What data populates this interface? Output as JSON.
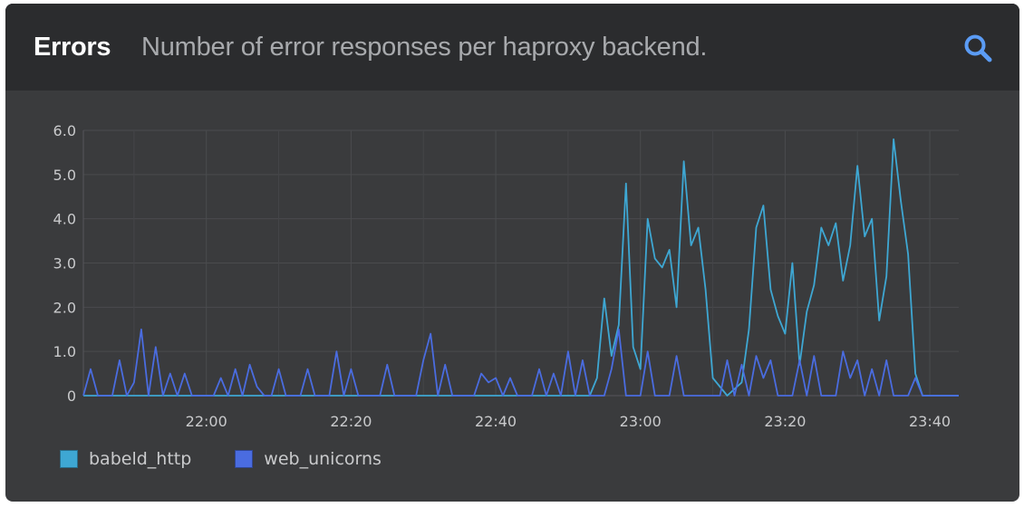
{
  "panel": {
    "title": "Errors",
    "subtitle": "Number of error responses per haproxy backend.",
    "search_icon": "search-icon"
  },
  "colors": {
    "babeld_http": "#3ea7d3",
    "web_unicorns": "#4a6ce0",
    "search": "#5b9cf5"
  },
  "chart_data": {
    "type": "line",
    "x_unit": "time (HH:MM)",
    "xlim": [
      "21:43",
      "23:44"
    ],
    "x_ticks": [
      "22:00",
      "22:20",
      "22:40",
      "23:00",
      "23:20",
      "23:40"
    ],
    "ylim": [
      0,
      6
    ],
    "y_ticks": [
      "0",
      "1.0",
      "2.0",
      "3.0",
      "4.0",
      "5.0",
      "6.0"
    ],
    "grid": true,
    "legend_position": "bottom-left",
    "series": [
      {
        "name": "babeld_http",
        "color": "#3ea7d3",
        "points": [
          [
            "21:43",
            0
          ],
          [
            "22:53",
            0
          ],
          [
            "22:54",
            0.4
          ],
          [
            "22:55",
            2.2
          ],
          [
            "22:56",
            0.9
          ],
          [
            "22:57",
            1.6
          ],
          [
            "22:58",
            4.8
          ],
          [
            "22:59",
            1.1
          ],
          [
            "23:00",
            0.6
          ],
          [
            "23:01",
            4.0
          ],
          [
            "23:02",
            3.1
          ],
          [
            "23:03",
            2.9
          ],
          [
            "23:04",
            3.3
          ],
          [
            "23:05",
            2.0
          ],
          [
            "23:06",
            5.3
          ],
          [
            "23:07",
            3.4
          ],
          [
            "23:08",
            3.8
          ],
          [
            "23:09",
            2.4
          ],
          [
            "23:10",
            0.4
          ],
          [
            "23:12",
            0
          ],
          [
            "23:14",
            0.3
          ],
          [
            "23:15",
            1.5
          ],
          [
            "23:16",
            3.8
          ],
          [
            "23:17",
            4.3
          ],
          [
            "23:18",
            2.4
          ],
          [
            "23:19",
            1.8
          ],
          [
            "23:20",
            1.4
          ],
          [
            "23:21",
            3.0
          ],
          [
            "23:22",
            0.7
          ],
          [
            "23:23",
            1.9
          ],
          [
            "23:24",
            2.5
          ],
          [
            "23:25",
            3.8
          ],
          [
            "23:26",
            3.4
          ],
          [
            "23:27",
            3.9
          ],
          [
            "23:28",
            2.6
          ],
          [
            "23:29",
            3.4
          ],
          [
            "23:30",
            5.2
          ],
          [
            "23:31",
            3.6
          ],
          [
            "23:32",
            4.0
          ],
          [
            "23:33",
            1.7
          ],
          [
            "23:34",
            2.7
          ],
          [
            "23:35",
            5.8
          ],
          [
            "23:36",
            4.4
          ],
          [
            "23:37",
            3.2
          ],
          [
            "23:38",
            0.5
          ],
          [
            "23:39",
            0
          ],
          [
            "23:44",
            0
          ]
        ]
      },
      {
        "name": "web_unicorns",
        "color": "#4a6ce0",
        "points": [
          [
            "21:43",
            0
          ],
          [
            "21:44",
            0.6
          ],
          [
            "21:45",
            0
          ],
          [
            "21:47",
            0
          ],
          [
            "21:48",
            0.8
          ],
          [
            "21:49",
            0
          ],
          [
            "21:50",
            0.3
          ],
          [
            "21:51",
            1.5
          ],
          [
            "21:52",
            0
          ],
          [
            "21:53",
            1.1
          ],
          [
            "21:54",
            0
          ],
          [
            "21:55",
            0.5
          ],
          [
            "21:56",
            0
          ],
          [
            "21:57",
            0.5
          ],
          [
            "21:58",
            0
          ],
          [
            "22:01",
            0
          ],
          [
            "22:02",
            0.4
          ],
          [
            "22:03",
            0
          ],
          [
            "22:04",
            0.6
          ],
          [
            "22:05",
            0
          ],
          [
            "22:06",
            0.7
          ],
          [
            "22:07",
            0.2
          ],
          [
            "22:08",
            0
          ],
          [
            "22:09",
            0
          ],
          [
            "22:10",
            0.6
          ],
          [
            "22:11",
            0
          ],
          [
            "22:13",
            0
          ],
          [
            "22:14",
            0.6
          ],
          [
            "22:15",
            0
          ],
          [
            "22:17",
            0
          ],
          [
            "22:18",
            1.0
          ],
          [
            "22:19",
            0
          ],
          [
            "22:20",
            0.6
          ],
          [
            "22:21",
            0
          ],
          [
            "22:24",
            0
          ],
          [
            "22:25",
            0.7
          ],
          [
            "22:26",
            0
          ],
          [
            "22:29",
            0
          ],
          [
            "22:30",
            0.8
          ],
          [
            "22:31",
            1.4
          ],
          [
            "22:32",
            0
          ],
          [
            "22:33",
            0.7
          ],
          [
            "22:34",
            0
          ],
          [
            "22:37",
            0
          ],
          [
            "22:38",
            0.5
          ],
          [
            "22:39",
            0.3
          ],
          [
            "22:40",
            0.4
          ],
          [
            "22:41",
            0
          ],
          [
            "22:42",
            0.4
          ],
          [
            "22:43",
            0
          ],
          [
            "22:45",
            0
          ],
          [
            "22:46",
            0.6
          ],
          [
            "22:47",
            0
          ],
          [
            "22:48",
            0.5
          ],
          [
            "22:49",
            0
          ],
          [
            "22:50",
            1.0
          ],
          [
            "22:51",
            0
          ],
          [
            "22:52",
            0.8
          ],
          [
            "22:53",
            0
          ],
          [
            "22:55",
            0
          ],
          [
            "22:56",
            0.6
          ],
          [
            "22:57",
            1.5
          ],
          [
            "22:58",
            0
          ],
          [
            "23:00",
            0
          ],
          [
            "23:01",
            1.0
          ],
          [
            "23:02",
            0
          ],
          [
            "23:04",
            0
          ],
          [
            "23:05",
            0.9
          ],
          [
            "23:06",
            0
          ],
          [
            "23:11",
            0
          ],
          [
            "23:12",
            0.8
          ],
          [
            "23:13",
            0
          ],
          [
            "23:14",
            0.7
          ],
          [
            "23:15",
            0
          ],
          [
            "23:16",
            0.9
          ],
          [
            "23:17",
            0.4
          ],
          [
            "23:18",
            0.8
          ],
          [
            "23:19",
            0
          ],
          [
            "23:21",
            0
          ],
          [
            "23:22",
            0.8
          ],
          [
            "23:23",
            0
          ],
          [
            "23:24",
            0.9
          ],
          [
            "23:25",
            0
          ],
          [
            "23:27",
            0
          ],
          [
            "23:28",
            1.0
          ],
          [
            "23:29",
            0.4
          ],
          [
            "23:30",
            0.8
          ],
          [
            "23:31",
            0
          ],
          [
            "23:32",
            0.6
          ],
          [
            "23:33",
            0
          ],
          [
            "23:34",
            0.8
          ],
          [
            "23:35",
            0
          ],
          [
            "23:37",
            0
          ],
          [
            "23:38",
            0.4
          ],
          [
            "23:39",
            0
          ],
          [
            "23:44",
            0
          ]
        ]
      }
    ]
  }
}
